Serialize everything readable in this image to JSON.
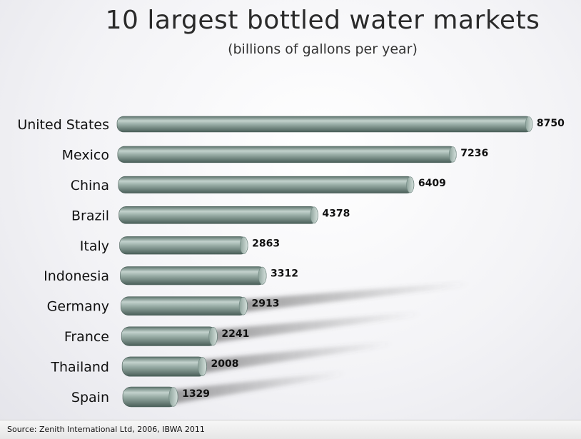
{
  "chart_data": {
    "type": "bar",
    "orientation": "horizontal",
    "title": "10 largest bottled water markets",
    "subtitle": "(billions of gallons per year)",
    "categories": [
      "United States",
      "Mexico",
      "China",
      "Brazil",
      "Italy",
      "Indonesia",
      "Germany",
      "France",
      "Thailand",
      "Spain"
    ],
    "values": [
      8750,
      7236,
      6409,
      4378,
      2863,
      3312,
      2913,
      2241,
      2008,
      1329
    ],
    "value_labels": [
      "8750",
      "7236",
      "6409",
      "4378",
      "2863",
      "3312",
      "2913",
      "2241",
      "2008",
      "1329"
    ],
    "bar_color": "#8fa39c",
    "bar_dark_color": "#4f6660",
    "grid": false
  },
  "footer": {
    "source": "Source: Zenith International Ltd,  2006, IBWA 2011"
  }
}
